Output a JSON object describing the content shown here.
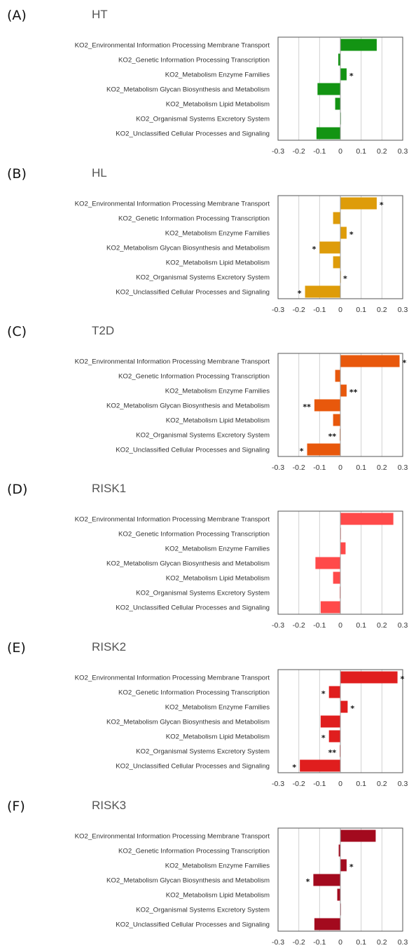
{
  "chart_data": [
    {
      "type": "bar",
      "orientation": "horizontal",
      "panel": "(A)",
      "title": "HT",
      "color": "#139413",
      "categories": [
        "KO2_Environmental Information Processing Membrane Transport",
        "KO2_Genetic Information Processing Transcription",
        "KO2_Metabolism Enzyme Families",
        "KO2_Metabolism Glycan Biosynthesis and Metabolism",
        "KO2_Metabolism Lipid Metabolism",
        "KO2_Organismal Systems Excretory System",
        "KO2_Unclassified Cellular Processes and Signaling"
      ],
      "values": [
        0.175,
        -0.01,
        0.03,
        -0.11,
        -0.025,
        0.0,
        -0.115
      ],
      "significance": [
        "",
        "",
        "*",
        "",
        "",
        "",
        ""
      ],
      "xlim": [
        -0.3,
        0.3
      ],
      "ticks": [
        "-0.3",
        "-0.2",
        "-0.1",
        "0",
        "0.1",
        "0.2",
        "0.3"
      ],
      "grid": true
    },
    {
      "type": "bar",
      "orientation": "horizontal",
      "panel": "(B)",
      "title": "HL",
      "color": "#DE9C0A",
      "categories": [
        "KO2_Environmental Information Processing Membrane Transport",
        "KO2_Genetic Information Processing Transcription",
        "KO2_Metabolism Enzyme Families",
        "KO2_Metabolism Glycan Biosynthesis and Metabolism",
        "KO2_Metabolism Lipid Metabolism",
        "KO2_Organismal Systems Excretory System",
        "KO2_Unclassified Cellular Processes and Signaling"
      ],
      "values": [
        0.175,
        -0.035,
        0.03,
        -0.1,
        -0.035,
        0.0,
        -0.17
      ],
      "significance": [
        "*",
        "",
        "*",
        "*",
        "",
        "*",
        "*"
      ],
      "xlim": [
        -0.3,
        0.3
      ],
      "ticks": [
        "-0.3",
        "-0.2",
        "-0.1",
        "0",
        "0.1",
        "0.2",
        "0.3"
      ],
      "grid": true
    },
    {
      "type": "bar",
      "orientation": "horizontal",
      "panel": "(C)",
      "title": "T2D",
      "color": "#E8580C",
      "categories": [
        "KO2_Environmental Information Processing Membrane Transport",
        "KO2_Genetic Information Processing Transcription",
        "KO2_Metabolism Enzyme Families",
        "KO2_Metabolism Glycan Biosynthesis and Metabolism",
        "KO2_Metabolism Lipid Metabolism",
        "KO2_Organismal Systems Excretory System",
        "KO2_Unclassified Cellular Processes and Signaling"
      ],
      "values": [
        0.285,
        -0.025,
        0.03,
        -0.125,
        -0.035,
        -0.003,
        -0.16
      ],
      "significance": [
        "*",
        "",
        "**",
        "**",
        "",
        "**",
        "*"
      ],
      "xlim": [
        -0.3,
        0.3
      ],
      "ticks": [
        "-0.3",
        "-0.2",
        "-0.1",
        "0",
        "0.1",
        "0.2",
        "0.3"
      ],
      "grid": true
    },
    {
      "type": "bar",
      "orientation": "horizontal",
      "panel": "(D)",
      "title": "RISK1",
      "color": "#FF4A4A",
      "categories": [
        "KO2_Environmental Information Processing Membrane Transport",
        "KO2_Genetic Information Processing Transcription",
        "KO2_Metabolism Enzyme Families",
        "KO2_Metabolism Glycan Biosynthesis and Metabolism",
        "KO2_Metabolism Lipid Metabolism",
        "KO2_Organismal Systems Excretory System",
        "KO2_Unclassified Cellular Processes and Signaling"
      ],
      "values": [
        0.255,
        0.0,
        0.025,
        -0.12,
        -0.035,
        -0.003,
        -0.095
      ],
      "significance": [
        "",
        "",
        "",
        "",
        "",
        "",
        ""
      ],
      "xlim": [
        -0.3,
        0.3
      ],
      "ticks": [
        "-0.3",
        "-0.2",
        "-0.1",
        "0",
        "0.1",
        "0.2",
        "0.3"
      ],
      "grid": true
    },
    {
      "type": "bar",
      "orientation": "horizontal",
      "panel": "(E)",
      "title": "RISK2",
      "color": "#E01E1E",
      "categories": [
        "KO2_Environmental Information Processing Membrane Transport",
        "KO2_Genetic Information Processing Transcription",
        "KO2_Metabolism Enzyme Families",
        "KO2_Metabolism Glycan Biosynthesis and Metabolism",
        "KO2_Metabolism Lipid Metabolism",
        "KO2_Organismal Systems Excretory System",
        "KO2_Unclassified Cellular Processes and Signaling"
      ],
      "values": [
        0.275,
        -0.055,
        0.035,
        -0.095,
        -0.055,
        -0.003,
        -0.195
      ],
      "significance": [
        "*",
        "*",
        "*",
        "",
        "*",
        "**",
        "*"
      ],
      "xlim": [
        -0.3,
        0.3
      ],
      "ticks": [
        "-0.3",
        "-0.2",
        "-0.1",
        "0",
        "0.1",
        "0.2",
        "0.3"
      ],
      "grid": true
    },
    {
      "type": "bar",
      "orientation": "horizontal",
      "panel": "(F)",
      "title": "RISK3",
      "color": "#A30A1E",
      "categories": [
        "KO2_Environmental Information Processing Membrane Transport",
        "KO2_Genetic Information Processing Transcription",
        "KO2_Metabolism Enzyme Families",
        "KO2_Metabolism Glycan Biosynthesis and Metabolism",
        "KO2_Metabolism Lipid Metabolism",
        "KO2_Organismal Systems Excretory System",
        "KO2_Unclassified Cellular Processes and Signaling"
      ],
      "values": [
        0.17,
        -0.008,
        0.03,
        -0.13,
        -0.015,
        0.0,
        -0.125
      ],
      "significance": [
        "",
        "",
        "*",
        "*",
        "",
        "",
        ""
      ],
      "xlim": [
        -0.3,
        0.3
      ],
      "ticks": [
        "-0.3",
        "-0.2",
        "-0.1",
        "0",
        "0.1",
        "0.2",
        "0.3"
      ],
      "grid": true
    }
  ]
}
